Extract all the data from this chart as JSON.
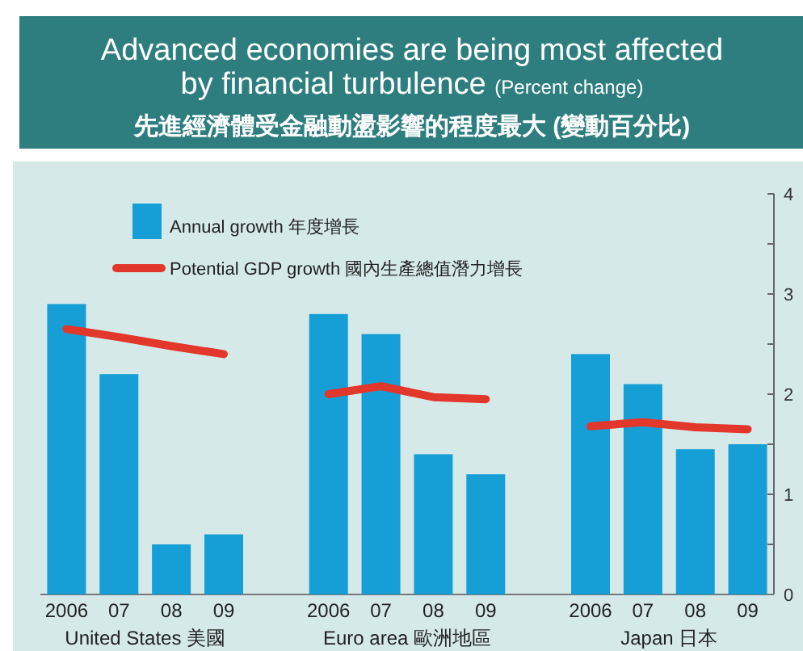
{
  "chart_data": {
    "type": "bar",
    "title": "Advanced economies are being most affected by financial turbulence",
    "subtitle": "(Percent change)",
    "annotations": [
      "先進經濟體受金融動盪影響的程度最大 (變動百分比)",
      "United States 美國",
      "Euro area 歐洲地區",
      "Japan 日本"
    ],
    "categories": [
      "2006",
      "07",
      "08",
      "09",
      null,
      "2006",
      "07",
      "08",
      "09",
      null,
      "2006",
      "07",
      "08",
      "09"
    ],
    "series": [
      {
        "name": "Annual growth 年度增長",
        "color": "#169fd6",
        "values": [
          2.9,
          2.2,
          0.5,
          0.6,
          null,
          2.8,
          2.6,
          1.4,
          1.2,
          null,
          2.4,
          2.1,
          1.45,
          1.5
        ]
      },
      {
        "name": "Potential GDP growth 國內生產總值潛力增長",
        "type": "line",
        "color": "#e2372b",
        "values": [
          2.65,
          2.57,
          2.48,
          2.4,
          null,
          2.0,
          2.08,
          1.97,
          1.95,
          null,
          1.68,
          1.72,
          1.67,
          1.65
        ]
      }
    ],
    "ylim": [
      0,
      4
    ],
    "yticks": [
      0,
      {
        "value": 0.5,
        "label": null
      },
      1,
      {
        "value": 1.5,
        "label": null
      },
      2,
      {
        "value": 2.5,
        "label": null
      },
      3,
      {
        "value": 3.5,
        "label": null
      },
      4
    ],
    "legend": "top left",
    "grid": false
  }
}
